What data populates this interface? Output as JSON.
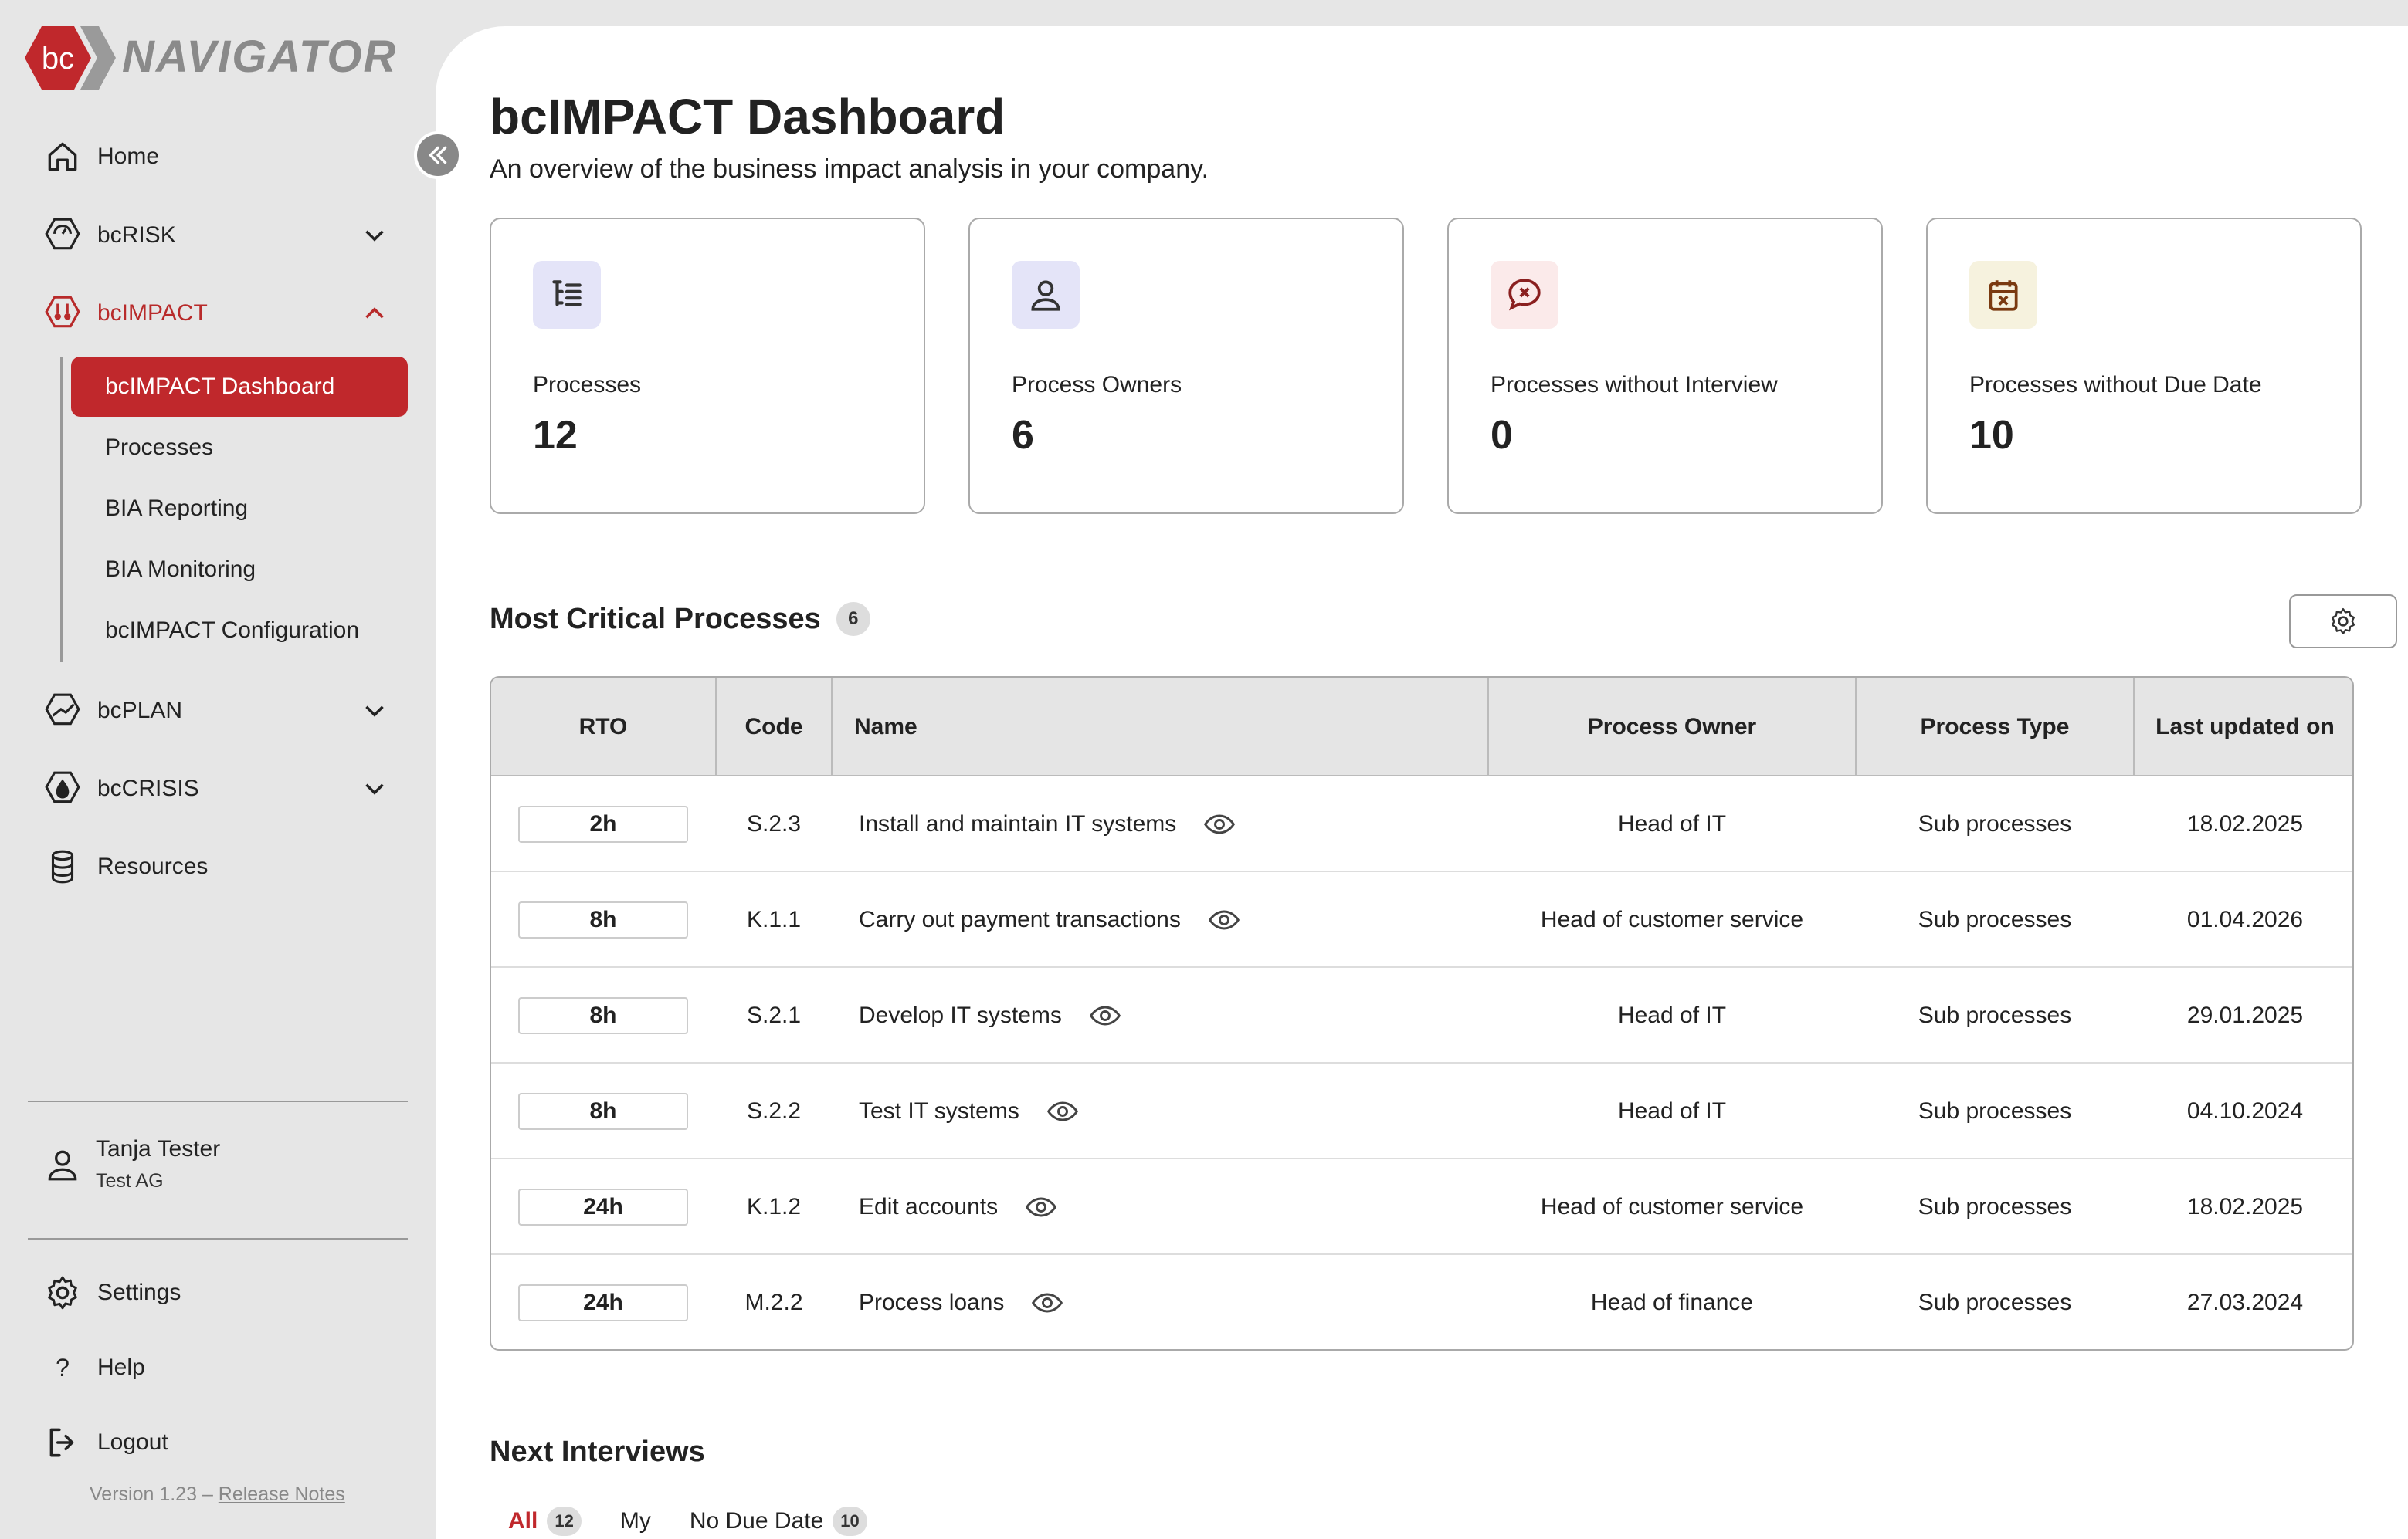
{
  "app": {
    "logo_mark": "bc",
    "logo_text": "NAVIGATOR",
    "brand_color": "#c0282c"
  },
  "sidebar": {
    "items": [
      {
        "label": "Home",
        "icon": "home-icon"
      },
      {
        "label": "bcRISK",
        "icon": "risk-icon",
        "expanded": false
      },
      {
        "label": "bcIMPACT",
        "icon": "impact-icon",
        "expanded": true
      },
      {
        "label": "bcPLAN",
        "icon": "plan-icon",
        "expanded": false
      },
      {
        "label": "bcCRISIS",
        "icon": "crisis-icon",
        "expanded": false
      },
      {
        "label": "Resources",
        "icon": "database-icon"
      }
    ],
    "subitems": [
      {
        "label": "bcIMPACT Dashboard",
        "active": true
      },
      {
        "label": "Processes"
      },
      {
        "label": "BIA Reporting"
      },
      {
        "label": "BIA Monitoring"
      },
      {
        "label": "bcIMPACT Configuration"
      }
    ],
    "user": {
      "name": "Tanja Tester",
      "org": "Test AG"
    },
    "bottom": [
      {
        "label": "Settings",
        "icon": "gear-icon"
      },
      {
        "label": "Help",
        "icon": "question-icon"
      },
      {
        "label": "Logout",
        "icon": "logout-icon"
      }
    ],
    "version": "Version 1.23",
    "version_sep": " – ",
    "release_notes": "Release Notes"
  },
  "header": {
    "title": "bcIMPACT Dashboard",
    "subtitle": "An overview of the business impact analysis in your company."
  },
  "cards": [
    {
      "label": "Processes",
      "value": "12",
      "icon": "process-list-icon",
      "bg": "#e4e4f8"
    },
    {
      "label": "Process Owners",
      "value": "6",
      "icon": "user-icon",
      "bg": "#e4e4f8"
    },
    {
      "label": "Processes without Interview",
      "value": "0",
      "icon": "chat-x-icon",
      "bg": "#fbeaea"
    },
    {
      "label": "Processes without Due Date",
      "value": "10",
      "icon": "calendar-x-icon",
      "bg": "#f6f2de"
    }
  ],
  "critical": {
    "title": "Most Critical Processes",
    "count": "6",
    "columns": [
      "RTO",
      "Code",
      "Name",
      "Process Owner",
      "Process Type",
      "Last updated on"
    ],
    "rows": [
      {
        "rto": "2h",
        "code": "S.2.3",
        "name": "Install and maintain IT systems",
        "owner": "Head of IT",
        "type": "Sub processes",
        "updated": "18.02.2025"
      },
      {
        "rto": "8h",
        "code": "K.1.1",
        "name": "Carry out payment transactions",
        "owner": "Head of customer service",
        "type": "Sub processes",
        "updated": "01.04.2026"
      },
      {
        "rto": "8h",
        "code": "S.2.1",
        "name": "Develop IT systems",
        "owner": "Head of IT",
        "type": "Sub processes",
        "updated": "29.01.2025"
      },
      {
        "rto": "8h",
        "code": "S.2.2",
        "name": "Test IT systems",
        "owner": "Head of IT",
        "type": "Sub processes",
        "updated": "04.10.2024"
      },
      {
        "rto": "24h",
        "code": "K.1.2",
        "name": "Edit accounts",
        "owner": "Head of customer service",
        "type": "Sub processes",
        "updated": "18.02.2025"
      },
      {
        "rto": "24h",
        "code": "M.2.2",
        "name": "Process loans",
        "owner": "Head of finance",
        "type": "Sub processes",
        "updated": "27.03.2024"
      }
    ]
  },
  "interviews": {
    "title": "Next Interviews",
    "tabs": [
      {
        "label": "All",
        "count": "12",
        "active": true
      },
      {
        "label": "My",
        "count": ""
      },
      {
        "label": "No Due Date",
        "count": "10"
      }
    ]
  }
}
